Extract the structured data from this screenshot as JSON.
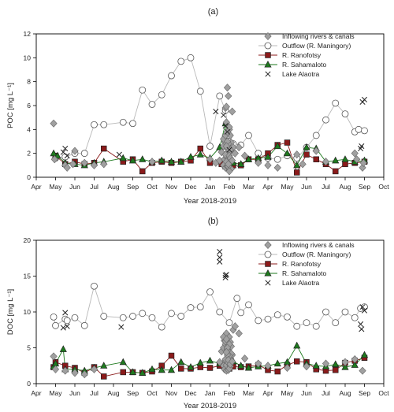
{
  "chart_data": [
    {
      "type": "scatter",
      "title": "(a)",
      "xlabel": "Year 2018-2019",
      "ylabel": "POC  [mg L⁻¹]",
      "x_tick_labels": [
        "Apr",
        "May",
        "Jun",
        "Jul",
        "Aug",
        "Sep",
        "Oct",
        "Nov",
        "Dec",
        "Jan",
        "Feb",
        "Mar",
        "Apr",
        "May",
        "Jun",
        "Jul",
        "Aug",
        "Sep",
        "Oct"
      ],
      "x_months_range": [
        0,
        18
      ],
      "ylim": [
        0,
        12
      ],
      "y_ticks": [
        0,
        2,
        4,
        6,
        8,
        10,
        12
      ],
      "legend_position": "top-right",
      "series": [
        {
          "name": "Inflowing rivers & canals",
          "marker": "diamond",
          "color": "#a0a0a0",
          "line": false,
          "x": [
            0.9,
            0.95,
            1.5,
            1.6,
            1.9,
            2.0,
            2.5,
            3.0,
            3.5,
            6.0,
            9.0,
            9.3,
            9.5,
            9.6,
            9.7,
            9.75,
            9.8,
            9.85,
            9.9,
            9.95,
            10.0,
            10.05,
            10.1,
            10.15,
            10.2,
            9.7,
            9.8,
            9.9,
            10.0,
            10.1,
            9.75,
            9.85,
            9.95,
            10.05,
            9.7,
            9.8,
            9.9,
            10.0,
            9.85,
            9.95,
            10.05,
            9.8,
            9.9,
            10.0,
            9.85,
            9.95,
            10.0,
            9.9,
            9.95,
            9.85,
            10.05,
            10.15,
            10.3,
            10.5,
            10.8,
            11.5,
            12.0,
            12.5,
            13.5,
            13.8,
            14.5,
            15.0,
            16.5,
            16.6,
            16.9,
            16.95
          ],
          "y": [
            4.5,
            1.5,
            1.0,
            0.8,
            1.1,
            2.2,
            1.2,
            1.0,
            1.1,
            1.3,
            1.5,
            1.2,
            1.4,
            2.1,
            2.6,
            3.0,
            5.8,
            5.9,
            7.5,
            6.8,
            4.0,
            3.5,
            2.9,
            5.5,
            2.5,
            1.0,
            0.8,
            0.9,
            1.2,
            0.7,
            1.5,
            1.7,
            2.0,
            2.2,
            3.2,
            3.5,
            3.8,
            4.2,
            4.6,
            2.8,
            2.3,
            1.9,
            2.4,
            1.8,
            1.3,
            0.9,
            0.5,
            3.0,
            1.1,
            2.6,
            1.6,
            1.4,
            2.0,
            2.5,
            1.8,
            1.2,
            1.0,
            0.8,
            1.9,
            1.1,
            2.2,
            1.3,
            2.0,
            1.5,
            0.8,
            1.2
          ]
        },
        {
          "name": "Outflow (R. Maningory)",
          "marker": "circle",
          "color": "#bdbdbd",
          "line": true,
          "x": [
            1.0,
            1.5,
            2.0,
            2.5,
            3.0,
            3.5,
            4.5,
            5.0,
            5.5,
            6.0,
            6.5,
            7.0,
            7.5,
            8.0,
            8.5,
            9.0,
            9.5,
            9.8,
            10.0,
            10.2,
            10.6,
            11.0,
            11.5,
            12.0,
            12.5,
            13.0,
            13.5,
            14.0,
            14.5,
            15.0,
            15.5,
            16.0,
            16.5,
            16.7,
            17.0
          ],
          "y": [
            1.6,
            1.7,
            2.0,
            2.0,
            4.4,
            4.4,
            4.6,
            4.5,
            7.3,
            6.1,
            6.9,
            8.5,
            9.7,
            10.0,
            7.2,
            2.6,
            6.8,
            5.6,
            3.5,
            2.8,
            2.7,
            3.5,
            2.0,
            1.6,
            1.5,
            1.8,
            1.6,
            2.5,
            3.5,
            4.8,
            6.2,
            5.3,
            3.8,
            4.0,
            3.9
          ]
        },
        {
          "name": "R. Ranofotsy",
          "marker": "square",
          "color": "#8b1a1a",
          "line": true,
          "x": [
            1.0,
            1.5,
            2.0,
            2.5,
            3.0,
            3.5,
            4.5,
            5.0,
            5.5,
            6.0,
            6.5,
            7.0,
            7.5,
            8.0,
            8.5,
            9.0,
            9.6,
            9.8,
            10.0,
            10.2,
            10.6,
            11.0,
            11.5,
            12.0,
            12.5,
            13.0,
            13.5,
            14.0,
            14.5,
            15.0,
            15.5,
            16.0,
            16.5,
            17.0
          ],
          "y": [
            1.8,
            1.1,
            1.3,
            1.1,
            1.2,
            2.4,
            1.3,
            1.5,
            0.5,
            1.2,
            1.3,
            1.2,
            1.3,
            1.4,
            2.4,
            1.2,
            1.1,
            0.9,
            0.8,
            1.0,
            1.0,
            1.5,
            1.5,
            2.0,
            2.7,
            2.9,
            0.4,
            1.9,
            1.5,
            1.1,
            0.5,
            1.1,
            1.2,
            1.3
          ]
        },
        {
          "name": "R. Sahamaloto",
          "marker": "triangle",
          "color": "#1e7a1e",
          "line": true,
          "x": [
            0.9,
            1.1,
            1.5,
            2.0,
            2.5,
            3.0,
            3.5,
            4.5,
            5.0,
            5.5,
            6.0,
            6.5,
            7.0,
            7.5,
            8.0,
            8.5,
            9.0,
            9.5,
            9.8,
            10.0,
            10.2,
            10.6,
            11.0,
            11.5,
            12.0,
            12.5,
            13.0,
            13.5,
            14.0,
            14.5,
            15.0,
            15.5,
            16.0,
            16.5,
            17.0
          ],
          "y": [
            2.0,
            1.8,
            1.2,
            1.1,
            1.0,
            1.2,
            1.3,
            1.6,
            1.4,
            1.5,
            1.3,
            1.4,
            1.3,
            1.3,
            1.7,
            1.9,
            1.6,
            2.5,
            4.5,
            1.3,
            1.2,
            1.1,
            1.5,
            1.6,
            1.7,
            2.6,
            2.0,
            1.0,
            2.5,
            2.4,
            1.3,
            1.4,
            1.5,
            1.3,
            1.4
          ]
        },
        {
          "name": "Lake Alaotra",
          "marker": "x",
          "color": "#222222",
          "line": false,
          "x": [
            1.4,
            1.5,
            1.6,
            4.3,
            9.3,
            9.7,
            9.8,
            9.9,
            10.0,
            16.8,
            16.85,
            16.9,
            17.0
          ],
          "y": [
            2.1,
            2.4,
            1.8,
            1.9,
            5.5,
            5.2,
            4.3,
            3.8,
            2.3,
            2.4,
            2.6,
            6.3,
            6.5
          ]
        }
      ]
    },
    {
      "type": "scatter",
      "title": "(b)",
      "xlabel": "Year 2018-2019",
      "ylabel": "DOC  [mg L⁻¹]",
      "x_tick_labels": [
        "Apr",
        "May",
        "Jun",
        "Jul",
        "Aug",
        "Sep",
        "Oct",
        "Nov",
        "Dec",
        "Jan",
        "Feb",
        "Mar",
        "Apr",
        "May",
        "Jun",
        "Jul",
        "Aug",
        "Sep",
        "Oct"
      ],
      "x_months_range": [
        0,
        18
      ],
      "ylim": [
        0,
        20
      ],
      "y_ticks": [
        0,
        5,
        10,
        15,
        20
      ],
      "legend_position": "top-right",
      "series": [
        {
          "name": "Inflowing rivers & canals",
          "marker": "diamond",
          "color": "#a0a0a0",
          "line": false,
          "x": [
            0.9,
            1.0,
            1.5,
            2.0,
            2.5,
            3.0,
            9.5,
            9.6,
            9.7,
            9.75,
            9.8,
            9.85,
            9.9,
            9.95,
            10.0,
            10.05,
            10.1,
            10.15,
            10.2,
            9.7,
            9.8,
            9.9,
            10.0,
            10.1,
            9.75,
            9.85,
            9.95,
            10.05,
            9.7,
            9.8,
            9.9,
            10.0,
            9.85,
            9.95,
            10.05,
            9.8,
            9.9,
            10.0,
            9.85,
            9.95,
            10.0,
            9.9,
            9.95,
            9.85,
            10.05,
            10.15,
            10.3,
            10.5,
            10.8,
            11.5,
            12.0,
            13.0,
            14.0,
            15.0,
            16.0,
            16.5,
            16.9
          ],
          "y": [
            3.8,
            2.0,
            1.8,
            1.5,
            1.3,
            2.0,
            3.0,
            4.5,
            5.0,
            6.0,
            5.5,
            7.0,
            4.8,
            5.3,
            6.5,
            5.8,
            5.2,
            4.0,
            7.5,
            2.5,
            3.2,
            2.8,
            3.6,
            4.2,
            2.0,
            1.8,
            2.2,
            3.0,
            6.5,
            5.9,
            4.6,
            3.9,
            2.6,
            1.9,
            2.4,
            3.4,
            4.0,
            5.5,
            6.2,
            2.9,
            2.1,
            5.0,
            3.3,
            4.4,
            2.7,
            3.1,
            8.0,
            7.0,
            3.5,
            2.8,
            2.5,
            2.2,
            2.4,
            2.8,
            3.0,
            3.4,
            1.8
          ]
        },
        {
          "name": "Outflow (R. Maningory)",
          "marker": "circle",
          "color": "#bdbdbd",
          "line": true,
          "x": [
            0.9,
            1.0,
            1.5,
            1.6,
            2.0,
            2.5,
            3.0,
            3.5,
            4.5,
            5.0,
            5.5,
            6.0,
            6.5,
            7.0,
            7.5,
            8.0,
            8.5,
            9.0,
            9.5,
            10.0,
            10.4,
            10.6,
            11.0,
            11.5,
            12.0,
            12.5,
            13.0,
            13.5,
            14.0,
            14.5,
            15.0,
            15.5,
            16.0,
            16.5,
            16.8,
            17.0
          ],
          "y": [
            9.3,
            8.1,
            9.0,
            8.8,
            9.2,
            8.1,
            13.6,
            9.4,
            9.2,
            9.4,
            9.8,
            9.2,
            7.9,
            9.8,
            9.4,
            10.6,
            10.7,
            12.8,
            10.0,
            8.5,
            11.9,
            9.9,
            11.0,
            8.8,
            9.0,
            9.6,
            9.3,
            8.0,
            8.5,
            8.0,
            10.0,
            8.5,
            10.0,
            9.2,
            10.5,
            10.7
          ]
        },
        {
          "name": "R. Ranofotsy",
          "marker": "square",
          "color": "#8b1a1a",
          "line": true,
          "x": [
            0.9,
            1.0,
            1.5,
            2.0,
            2.5,
            3.0,
            3.5,
            4.5,
            5.0,
            5.5,
            6.0,
            6.5,
            7.0,
            7.5,
            8.0,
            8.5,
            9.0,
            9.5,
            10.0,
            10.2,
            10.6,
            11.0,
            11.5,
            12.0,
            12.5,
            13.0,
            13.5,
            14.0,
            14.5,
            15.0,
            15.5,
            16.0,
            16.5,
            17.0
          ],
          "y": [
            2.3,
            3.0,
            2.5,
            2.2,
            1.5,
            2.3,
            1.0,
            1.6,
            1.6,
            1.5,
            1.7,
            2.5,
            3.9,
            2.1,
            2.1,
            2.3,
            2.2,
            2.5,
            2.1,
            2.4,
            2.3,
            2.4,
            2.6,
            1.9,
            1.7,
            2.6,
            3.1,
            3.0,
            2.0,
            1.8,
            1.9,
            2.9,
            3.2,
            3.6
          ]
        },
        {
          "name": "R. Sahamaloto",
          "marker": "triangle",
          "color": "#1e7a1e",
          "line": true,
          "x": [
            0.9,
            1.0,
            1.4,
            1.5,
            2.0,
            2.5,
            3.0,
            3.5,
            4.5,
            5.0,
            5.5,
            6.0,
            6.5,
            7.0,
            7.5,
            8.0,
            8.5,
            9.0,
            9.5,
            10.0,
            10.2,
            10.6,
            11.0,
            11.5,
            12.0,
            12.5,
            13.0,
            13.5,
            14.0,
            14.5,
            15.0,
            15.5,
            16.0,
            16.5,
            17.0
          ],
          "y": [
            2.4,
            2.8,
            4.8,
            2.0,
            2.0,
            1.8,
            2.2,
            2.5,
            3.0,
            1.6,
            1.5,
            2.0,
            1.9,
            1.9,
            3.0,
            2.3,
            2.9,
            3.2,
            2.8,
            2.9,
            3.1,
            2.5,
            2.2,
            2.4,
            2.5,
            2.8,
            3.0,
            5.3,
            2.8,
            2.5,
            2.4,
            2.7,
            2.3,
            2.6,
            4.0
          ]
        },
        {
          "name": "Lake Alaotra",
          "marker": "x",
          "color": "#222222",
          "line": false,
          "x": [
            1.4,
            1.5,
            1.6,
            4.4,
            9.5,
            9.5,
            9.5,
            9.8,
            9.8,
            9.85,
            16.8,
            16.85,
            16.9,
            17.0
          ],
          "y": [
            7.8,
            9.9,
            8.0,
            7.9,
            18.4,
            17.6,
            17.0,
            15.1,
            14.8,
            15.2,
            8.3,
            7.6,
            10.7,
            10.2
          ]
        }
      ]
    }
  ]
}
